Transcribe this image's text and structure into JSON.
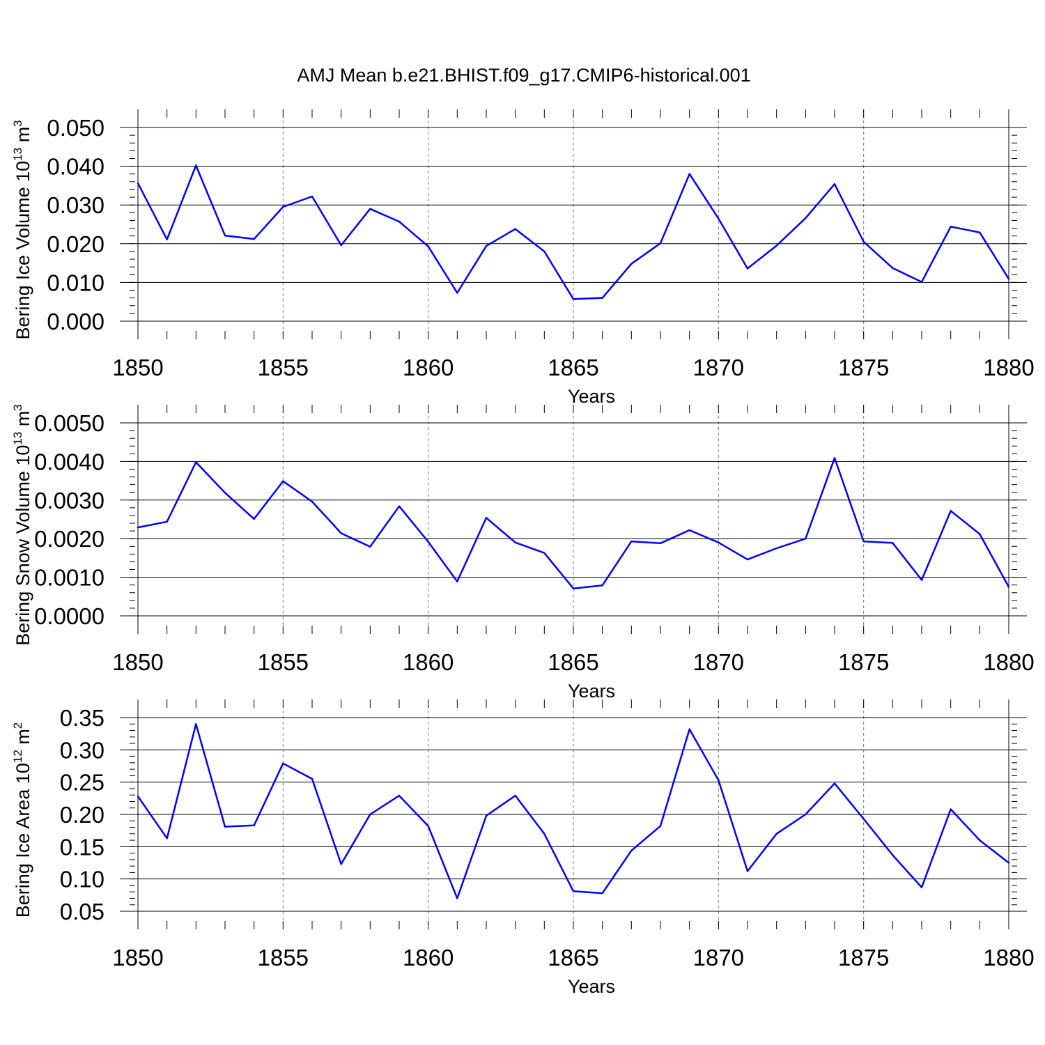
{
  "title": "AMJ Mean b.e21.BHIST.f09_g17.CMIP6-historical.001",
  "line_color": "#0000ff",
  "chart_data": [
    {
      "type": "line",
      "ylabel": "Bering Ice Volume 10",
      "ylabel_exp": "13",
      "ylabel_unit": " m",
      "ylabel_unit_exp": "3",
      "xlabel": "Years",
      "xlim": [
        1850,
        1880
      ],
      "ylim": [
        0.0,
        0.05
      ],
      "xticks": [
        "1850",
        "1855",
        "1860",
        "1865",
        "1870",
        "1875",
        "1880"
      ],
      "yticks": [
        "0.000",
        "0.010",
        "0.020",
        "0.030",
        "0.040",
        "0.050"
      ],
      "x": [
        1850,
        1851,
        1852,
        1853,
        1854,
        1855,
        1856,
        1857,
        1858,
        1859,
        1860,
        1861,
        1862,
        1863,
        1864,
        1865,
        1866,
        1867,
        1868,
        1869,
        1870,
        1871,
        1872,
        1873,
        1874,
        1875,
        1876,
        1877,
        1878,
        1879,
        1880
      ],
      "values": [
        0.0356,
        0.0211,
        0.0402,
        0.0221,
        0.0212,
        0.0295,
        0.0322,
        0.0196,
        0.029,
        0.0257,
        0.0193,
        0.0073,
        0.0194,
        0.0238,
        0.018,
        0.0057,
        0.006,
        0.0148,
        0.0201,
        0.038,
        0.0265,
        0.0136,
        0.0195,
        0.0266,
        0.0354,
        0.0205,
        0.0137,
        0.0101,
        0.0244,
        0.0229,
        0.0109
      ]
    },
    {
      "type": "line",
      "ylabel": "Bering Snow Volume 10",
      "ylabel_exp": "13",
      "ylabel_unit": " m",
      "ylabel_unit_exp": "3",
      "xlabel": "Years",
      "xlim": [
        1850,
        1880
      ],
      "ylim": [
        0.0,
        0.005
      ],
      "xticks": [
        "1850",
        "1855",
        "1860",
        "1865",
        "1870",
        "1875",
        "1880"
      ],
      "yticks": [
        "0.0000",
        "0.0010",
        "0.0020",
        "0.0030",
        "0.0040",
        "0.0050"
      ],
      "x": [
        1850,
        1851,
        1852,
        1853,
        1854,
        1855,
        1856,
        1857,
        1858,
        1859,
        1860,
        1861,
        1862,
        1863,
        1864,
        1865,
        1866,
        1867,
        1868,
        1869,
        1870,
        1871,
        1872,
        1873,
        1874,
        1875,
        1876,
        1877,
        1878,
        1879,
        1880
      ],
      "values": [
        0.00229,
        0.00244,
        0.00398,
        0.00319,
        0.00251,
        0.00349,
        0.00296,
        0.00214,
        0.00179,
        0.00284,
        0.00192,
        0.00089,
        0.00254,
        0.0019,
        0.00163,
        0.00071,
        0.00079,
        0.00193,
        0.00188,
        0.00222,
        0.0019,
        0.00146,
        0.00175,
        0.002,
        0.00409,
        0.00193,
        0.00189,
        0.00093,
        0.00272,
        0.00212,
        0.00075
      ]
    },
    {
      "type": "line",
      "ylabel": "Bering Ice Area 10",
      "ylabel_exp": "12",
      "ylabel_unit": " m",
      "ylabel_unit_exp": "2",
      "xlabel": "Years",
      "xlim": [
        1850,
        1880
      ],
      "ylim": [
        0.05,
        0.35
      ],
      "xticks": [
        "1850",
        "1855",
        "1860",
        "1865",
        "1870",
        "1875",
        "1880"
      ],
      "yticks": [
        "0.05",
        "0.10",
        "0.15",
        "0.20",
        "0.25",
        "0.30",
        "0.35"
      ],
      "x": [
        1850,
        1851,
        1852,
        1853,
        1854,
        1855,
        1856,
        1857,
        1858,
        1859,
        1860,
        1861,
        1862,
        1863,
        1864,
        1865,
        1866,
        1867,
        1868,
        1869,
        1870,
        1871,
        1872,
        1873,
        1874,
        1875,
        1876,
        1877,
        1878,
        1879,
        1880
      ],
      "values": [
        0.228,
        0.163,
        0.34,
        0.181,
        0.183,
        0.279,
        0.255,
        0.123,
        0.2,
        0.229,
        0.182,
        0.07,
        0.198,
        0.229,
        0.17,
        0.081,
        0.078,
        0.144,
        0.182,
        0.332,
        0.253,
        0.112,
        0.17,
        0.2,
        0.248,
        0.193,
        0.137,
        0.087,
        0.208,
        0.16,
        0.125
      ]
    }
  ]
}
